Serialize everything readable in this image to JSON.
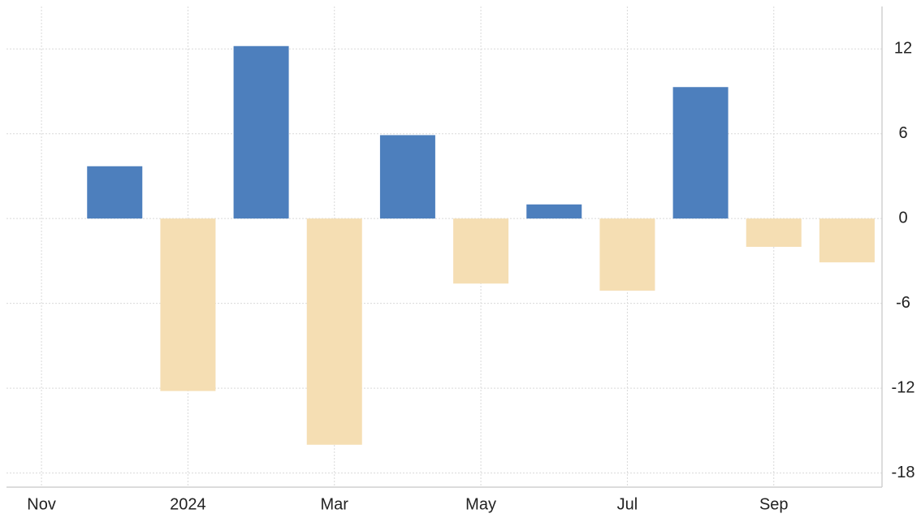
{
  "chart_data": {
    "type": "bar",
    "categories": [
      "Nov",
      null,
      "2024",
      null,
      "Mar",
      null,
      "May",
      null,
      "Jul",
      null,
      "Sep",
      null
    ],
    "values": [
      null,
      3.7,
      -12.2,
      12.2,
      -16.0,
      5.9,
      -4.6,
      1.0,
      -5.1,
      9.3,
      -2.0,
      -3.1
    ],
    "color": "#4d7fbd",
    "negative_color": "#f5deb3",
    "ylim": [
      -19,
      15
    ],
    "yticks": [
      -18,
      -12,
      -6,
      0,
      6,
      12
    ],
    "grid": true
  }
}
